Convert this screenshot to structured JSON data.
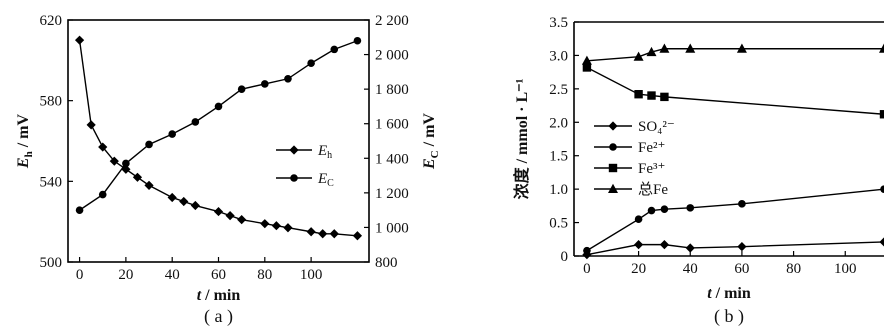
{
  "chart_data": [
    {
      "id": "a",
      "type": "line",
      "caption": "( a )",
      "xlabel": {
        "var": "t",
        "unit": "/ min"
      },
      "ylabel_left": {
        "var": "E",
        "sub": "h",
        "unit": " / mV"
      },
      "ylabel_right": {
        "var": "E",
        "sub": "C",
        "unit": " / mV"
      },
      "xlim": [
        -5,
        125
      ],
      "ylim_left": [
        500,
        620
      ],
      "ylim_right": [
        800,
        2200
      ],
      "xticks": [
        "0",
        "20",
        "40",
        "60",
        "80",
        "100"
      ],
      "xtick_values": [
        0,
        20,
        40,
        60,
        80,
        100
      ],
      "yticks_left": [
        "500",
        "540",
        "580",
        "620"
      ],
      "ytick_values_left": [
        500,
        540,
        580,
        620
      ],
      "yticks_right": [
        "800",
        "1 000",
        "1 200",
        "1 400",
        "1 600",
        "1 800",
        "2 000",
        "2 200"
      ],
      "ytick_values_right": [
        800,
        1000,
        1200,
        1400,
        1600,
        1800,
        2000,
        2200
      ],
      "legend_position": "right",
      "series": [
        {
          "name_var": "E",
          "name_sub": "h",
          "axis": "left",
          "marker": "diamond",
          "x": [
            0,
            5,
            10,
            15,
            20,
            25,
            30,
            40,
            45,
            50,
            60,
            65,
            70,
            80,
            85,
            90,
            100,
            105,
            110,
            120
          ],
          "y": [
            610,
            568,
            557,
            550,
            546,
            542,
            538,
            532,
            530,
            528,
            525,
            523,
            521,
            519,
            518,
            517,
            515,
            514,
            514,
            513
          ]
        },
        {
          "name_var": "E",
          "name_sub": "C",
          "axis": "right",
          "marker": "circle",
          "x": [
            0,
            10,
            20,
            30,
            40,
            50,
            60,
            70,
            80,
            90,
            100,
            110,
            120
          ],
          "y": [
            1100,
            1190,
            1370,
            1480,
            1540,
            1610,
            1700,
            1800,
            1830,
            1860,
            1950,
            2030,
            2080
          ]
        }
      ]
    },
    {
      "id": "b",
      "type": "line",
      "caption": "( b )",
      "xlabel": {
        "var": "t",
        "unit": "/ min"
      },
      "ylabel": "浓度 / mmol · L⁻¹",
      "xlim": [
        -5,
        115
      ],
      "ylim": [
        0,
        3.5
      ],
      "xticks": [
        "0",
        "20",
        "40",
        "60",
        "80",
        "100"
      ],
      "xtick_values": [
        0,
        20,
        40,
        60,
        80,
        100
      ],
      "yticks": [
        "0",
        "0.5",
        "1.0",
        "1.5",
        "2.0",
        "2.5",
        "3.0",
        "3.5"
      ],
      "ytick_values": [
        0,
        0.5,
        1.0,
        1.5,
        2.0,
        2.5,
        3.0,
        3.5
      ],
      "legend_position": "center-left",
      "series": [
        {
          "name": "SO₄²⁻",
          "marker": "diamond",
          "x": [
            0,
            20,
            30,
            40,
            60,
            120
          ],
          "y": [
            0.02,
            0.17,
            0.17,
            0.12,
            0.14,
            0.21
          ]
        },
        {
          "name": "Fe²⁺",
          "marker": "circle",
          "x": [
            0,
            20,
            25,
            30,
            40,
            60,
            120
          ],
          "y": [
            0.08,
            0.55,
            0.68,
            0.7,
            0.72,
            0.78,
            1.0
          ]
        },
        {
          "name": "Fe³⁺",
          "marker": "square",
          "x": [
            0,
            20,
            25,
            30,
            120
          ],
          "y": [
            2.82,
            2.42,
            2.4,
            2.38,
            2.12
          ]
        },
        {
          "name": "总Fe",
          "marker": "triangle",
          "x": [
            0,
            20,
            25,
            30,
            40,
            60,
            120
          ],
          "y": [
            2.92,
            2.98,
            3.05,
            3.1,
            3.1,
            3.1,
            3.1
          ]
        }
      ]
    }
  ]
}
